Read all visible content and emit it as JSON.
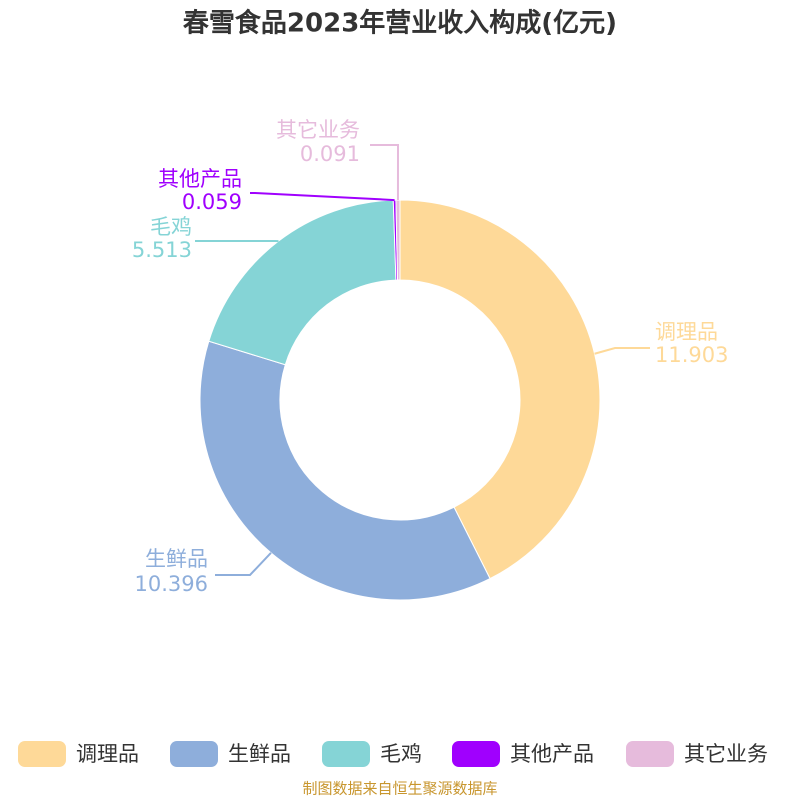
{
  "chart_data": {
    "type": "pie",
    "title": "春雪食品2023年营业收入构成(亿元)",
    "categories": [
      "调理品",
      "生鲜品",
      "毛鸡",
      "其他产品",
      "其它业务"
    ],
    "values": [
      11.903,
      10.396,
      5.513,
      0.059,
      0.091
    ],
    "colors": [
      "#fed998",
      "#8eaedb",
      "#85d4d6",
      "#a000fe",
      "#e6bbdc"
    ],
    "source": "制图数据来自恒生聚源数据库"
  }
}
